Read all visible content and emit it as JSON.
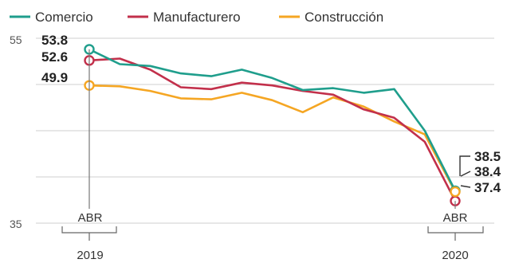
{
  "chart_data": {
    "type": "line",
    "x": [
      "2019-04",
      "2019-05",
      "2019-06",
      "2019-07",
      "2019-08",
      "2019-09",
      "2019-10",
      "2019-11",
      "2019-12",
      "2020-01",
      "2020-02",
      "2020-03",
      "2020-04"
    ],
    "ylim": [
      35,
      55
    ],
    "y_ticks": [
      "55",
      "35"
    ],
    "series": [
      {
        "name": "Comercio",
        "color": "#1f9e8c",
        "values": [
          53.8,
          52.2,
          52.0,
          51.2,
          50.9,
          51.6,
          50.7,
          49.4,
          49.6,
          49.1,
          49.5,
          45.0,
          38.5
        ]
      },
      {
        "name": "Manufacturero",
        "color": "#c2304b",
        "values": [
          52.6,
          52.8,
          51.6,
          49.7,
          49.5,
          50.2,
          49.9,
          49.3,
          48.9,
          47.3,
          46.4,
          43.8,
          37.4
        ]
      },
      {
        "name": "Construcción",
        "color": "#f5a623",
        "values": [
          49.9,
          49.8,
          49.3,
          48.5,
          48.4,
          49.1,
          48.3,
          47.0,
          48.6,
          47.6,
          46.0,
          44.6,
          38.4
        ]
      }
    ],
    "start_labels": [
      "53.8",
      "52.6",
      "49.9"
    ],
    "end_labels": [
      "38.5",
      "38.4",
      "37.4"
    ],
    "axis_markers": [
      {
        "month": "ABR",
        "year": "2019"
      },
      {
        "month": "ABR",
        "year": "2020"
      }
    ]
  }
}
